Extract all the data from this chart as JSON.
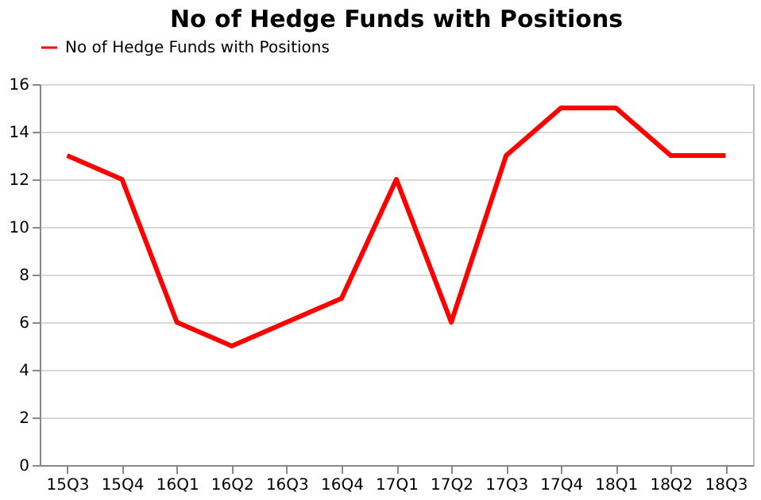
{
  "chart_data": {
    "type": "line",
    "title": "No of Hedge Funds with Positions",
    "categories": [
      "15Q3",
      "15Q4",
      "16Q1",
      "16Q2",
      "16Q3",
      "16Q4",
      "17Q1",
      "17Q2",
      "17Q3",
      "17Q4",
      "18Q1",
      "18Q2",
      "18Q3"
    ],
    "series": [
      {
        "name": "No of Hedge Funds with Positions",
        "color": "#ff0000",
        "values": [
          13,
          12,
          6,
          5,
          6,
          7,
          12,
          6,
          13,
          15,
          15,
          13,
          13
        ]
      }
    ],
    "ylim": [
      0,
      16
    ],
    "yticks": [
      0,
      2,
      4,
      6,
      8,
      10,
      12,
      14,
      16
    ],
    "grid": "y",
    "legend": "top",
    "marker": "none",
    "line_style": "solid"
  }
}
